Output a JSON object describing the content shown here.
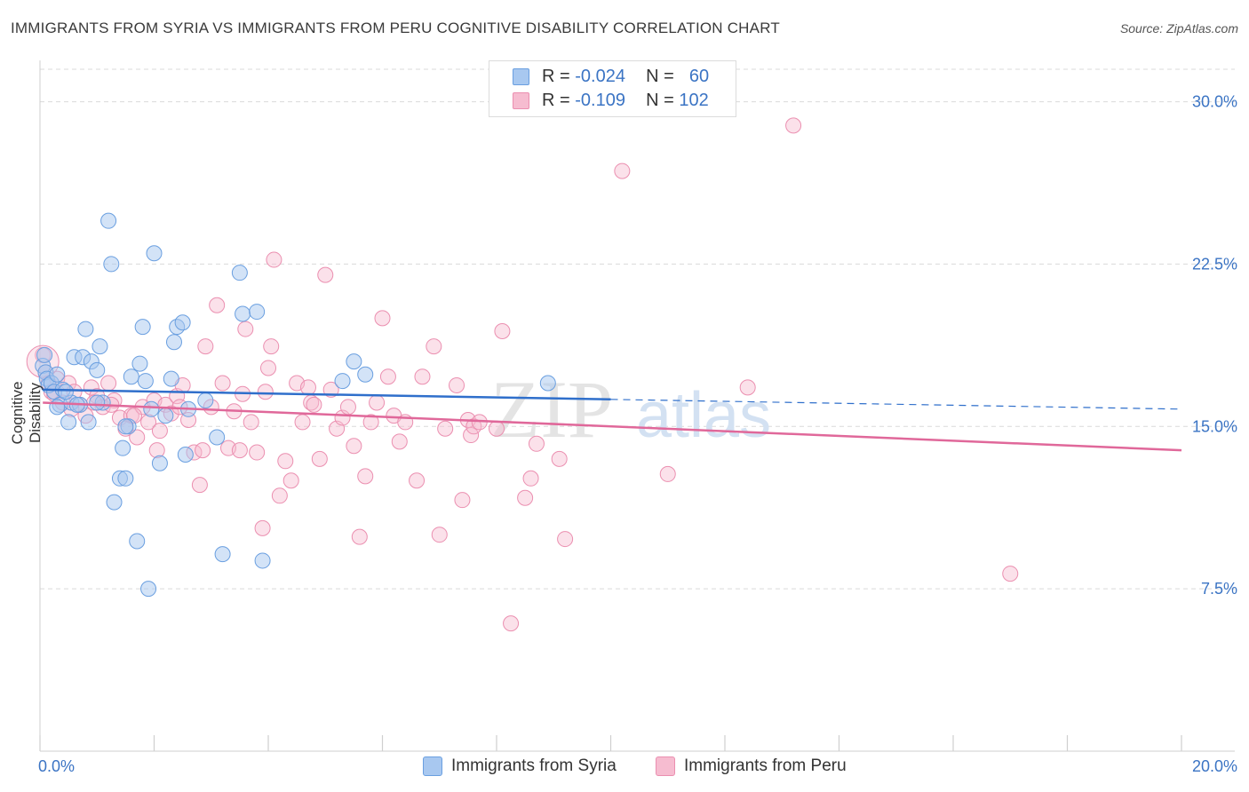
{
  "title": "IMMIGRANTS FROM SYRIA VS IMMIGRANTS FROM PERU COGNITIVE DISABILITY CORRELATION CHART",
  "source": "Source: ZipAtlas.com",
  "watermark": {
    "zip": "ZIP",
    "atlas": "atlas"
  },
  "legend": {
    "rows": [
      {
        "r_label": "R =",
        "r_value": "-0.024",
        "n_label": "N =",
        "n_value": "60"
      },
      {
        "r_label": "R =",
        "r_value": "-0.109",
        "n_label": "N =",
        "n_value": "102"
      }
    ]
  },
  "bottom_legend": [
    "Immigrants from Syria",
    "Immigrants from Peru"
  ],
  "colors": {
    "syria_fill": "#a8c8f0",
    "syria_stroke": "#6a9fe0",
    "syria_line": "#2f6fcb",
    "peru_fill": "#f6bcd0",
    "peru_stroke": "#eb8fb0",
    "peru_line": "#e0689a",
    "tick_label": "#3b74c4",
    "grid": "#d9d9d9"
  },
  "chart_data": {
    "type": "scatter",
    "title": "IMMIGRANTS FROM SYRIA VS IMMIGRANTS FROM PERU COGNITIVE DISABILITY CORRELATION CHART",
    "xlabel": "",
    "ylabel": "Cognitive Disability",
    "xlim": [
      0,
      20
    ],
    "ylim": [
      0,
      31.5
    ],
    "x_tick_labels": [
      "0.0%",
      "20.0%"
    ],
    "y_ticks": [
      7.5,
      15.0,
      22.5,
      30.0
    ],
    "y_tick_labels": [
      "7.5%",
      "15.0%",
      "22.5%",
      "30.0%"
    ],
    "grid": true,
    "legend_position": "top-center",
    "series": [
      {
        "name": "Immigrants from Syria",
        "R": -0.024,
        "N": 60,
        "trend": {
          "x": [
            0.05,
            10.0
          ],
          "y": [
            16.7,
            16.25
          ],
          "dashed_to": [
            20.0,
            15.8
          ]
        },
        "points": [
          [
            0.05,
            17.8
          ],
          [
            0.08,
            18.3
          ],
          [
            0.1,
            17.5
          ],
          [
            0.12,
            17.2
          ],
          [
            0.15,
            16.9
          ],
          [
            0.2,
            17.0
          ],
          [
            0.25,
            16.6
          ],
          [
            0.3,
            17.4
          ],
          [
            0.35,
            16.0
          ],
          [
            0.4,
            16.7
          ],
          [
            0.5,
            15.2
          ],
          [
            0.55,
            16.1
          ],
          [
            0.6,
            18.2
          ],
          [
            0.7,
            16.0
          ],
          [
            0.75,
            18.2
          ],
          [
            0.8,
            19.5
          ],
          [
            0.85,
            15.2
          ],
          [
            0.9,
            18.0
          ],
          [
            1.0,
            17.6
          ],
          [
            1.05,
            18.7
          ],
          [
            1.1,
            16.1
          ],
          [
            1.2,
            24.5
          ],
          [
            1.25,
            22.5
          ],
          [
            1.3,
            11.5
          ],
          [
            1.4,
            12.6
          ],
          [
            1.45,
            14.0
          ],
          [
            1.5,
            12.6
          ],
          [
            1.55,
            15.0
          ],
          [
            1.6,
            17.3
          ],
          [
            1.7,
            9.7
          ],
          [
            1.75,
            17.9
          ],
          [
            1.8,
            19.6
          ],
          [
            1.85,
            17.1
          ],
          [
            1.9,
            7.5
          ],
          [
            1.95,
            15.8
          ],
          [
            2.0,
            23.0
          ],
          [
            2.1,
            13.3
          ],
          [
            2.2,
            15.5
          ],
          [
            2.3,
            17.2
          ],
          [
            2.35,
            18.9
          ],
          [
            2.4,
            19.6
          ],
          [
            2.5,
            19.8
          ],
          [
            2.55,
            13.7
          ],
          [
            2.6,
            15.8
          ],
          [
            2.9,
            16.2
          ],
          [
            3.1,
            14.5
          ],
          [
            3.2,
            9.1
          ],
          [
            3.5,
            22.1
          ],
          [
            3.55,
            20.2
          ],
          [
            3.8,
            20.3
          ],
          [
            3.9,
            8.8
          ],
          [
            5.3,
            17.1
          ],
          [
            5.5,
            18.0
          ],
          [
            5.7,
            17.4
          ],
          [
            8.9,
            17.0
          ],
          [
            0.3,
            15.9
          ],
          [
            0.45,
            16.6
          ],
          [
            0.65,
            16.0
          ],
          [
            1.0,
            16.1
          ],
          [
            1.5,
            15.0
          ]
        ]
      },
      {
        "name": "Immigrants from Peru",
        "R": -0.109,
        "N": 102,
        "trend": {
          "x": [
            0.05,
            20.0
          ],
          "y": [
            16.1,
            13.9
          ]
        },
        "points": [
          [
            0.05,
            18.3
          ],
          [
            0.1,
            17.5
          ],
          [
            0.15,
            17.0
          ],
          [
            0.2,
            16.6
          ],
          [
            0.3,
            17.2
          ],
          [
            0.4,
            16.1
          ],
          [
            0.5,
            17.0
          ],
          [
            0.6,
            16.6
          ],
          [
            0.7,
            16.0
          ],
          [
            0.8,
            15.5
          ],
          [
            0.9,
            16.8
          ],
          [
            1.0,
            16.4
          ],
          [
            1.1,
            15.9
          ],
          [
            1.2,
            17.0
          ],
          [
            1.3,
            16.2
          ],
          [
            1.4,
            15.4
          ],
          [
            1.5,
            14.9
          ],
          [
            1.6,
            15.5
          ],
          [
            1.7,
            14.5
          ],
          [
            1.8,
            15.9
          ],
          [
            1.9,
            15.2
          ],
          [
            2.0,
            16.2
          ],
          [
            2.1,
            14.8
          ],
          [
            2.2,
            16.0
          ],
          [
            2.3,
            15.6
          ],
          [
            2.4,
            16.4
          ],
          [
            2.5,
            16.9
          ],
          [
            2.6,
            15.3
          ],
          [
            2.7,
            13.8
          ],
          [
            2.8,
            12.3
          ],
          [
            2.85,
            13.9
          ],
          [
            2.9,
            18.7
          ],
          [
            3.0,
            15.9
          ],
          [
            3.1,
            20.6
          ],
          [
            3.2,
            17.0
          ],
          [
            3.3,
            14.0
          ],
          [
            3.4,
            15.7
          ],
          [
            3.5,
            13.9
          ],
          [
            3.55,
            16.5
          ],
          [
            3.6,
            19.5
          ],
          [
            3.7,
            15.2
          ],
          [
            3.8,
            13.8
          ],
          [
            3.9,
            10.3
          ],
          [
            3.95,
            16.6
          ],
          [
            4.0,
            17.7
          ],
          [
            4.05,
            18.7
          ],
          [
            4.1,
            22.7
          ],
          [
            4.2,
            11.8
          ],
          [
            4.3,
            13.4
          ],
          [
            4.4,
            12.5
          ],
          [
            4.5,
            17.0
          ],
          [
            4.6,
            15.2
          ],
          [
            4.7,
            16.8
          ],
          [
            4.75,
            16.1
          ],
          [
            4.8,
            16.0
          ],
          [
            4.9,
            13.5
          ],
          [
            5.0,
            22.0
          ],
          [
            5.1,
            16.7
          ],
          [
            5.2,
            14.9
          ],
          [
            5.3,
            15.4
          ],
          [
            5.4,
            15.9
          ],
          [
            5.5,
            14.1
          ],
          [
            5.6,
            9.9
          ],
          [
            5.7,
            12.7
          ],
          [
            5.8,
            15.2
          ],
          [
            5.9,
            16.1
          ],
          [
            6.0,
            20.0
          ],
          [
            6.1,
            17.3
          ],
          [
            6.2,
            15.5
          ],
          [
            6.3,
            14.3
          ],
          [
            6.4,
            15.2
          ],
          [
            6.6,
            12.5
          ],
          [
            6.7,
            17.3
          ],
          [
            6.9,
            18.7
          ],
          [
            7.0,
            10.0
          ],
          [
            7.1,
            14.9
          ],
          [
            7.3,
            16.9
          ],
          [
            7.4,
            11.6
          ],
          [
            7.5,
            15.3
          ],
          [
            7.55,
            14.6
          ],
          [
            7.6,
            15.0
          ],
          [
            7.7,
            15.2
          ],
          [
            8.0,
            14.9
          ],
          [
            8.1,
            19.4
          ],
          [
            8.25,
            5.9
          ],
          [
            8.5,
            11.7
          ],
          [
            8.6,
            12.6
          ],
          [
            8.7,
            14.2
          ],
          [
            9.1,
            13.5
          ],
          [
            9.2,
            9.8
          ],
          [
            10.2,
            26.8
          ],
          [
            11.0,
            12.8
          ],
          [
            12.4,
            16.8
          ],
          [
            13.2,
            28.9
          ],
          [
            17.0,
            8.2
          ],
          [
            0.25,
            16.5
          ],
          [
            0.55,
            15.8
          ],
          [
            0.95,
            16.1
          ],
          [
            1.25,
            16.0
          ],
          [
            1.65,
            15.5
          ],
          [
            2.05,
            13.9
          ],
          [
            2.45,
            15.9
          ]
        ]
      }
    ]
  }
}
